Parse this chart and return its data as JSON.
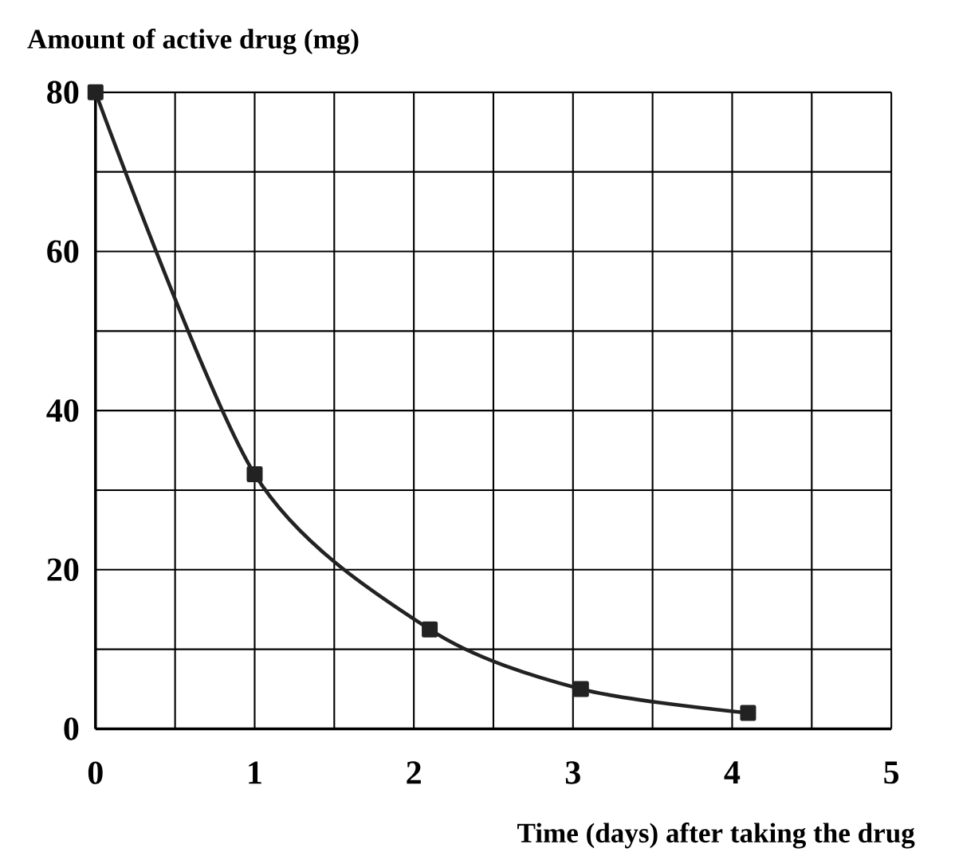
{
  "chart_data": {
    "type": "line",
    "xlabel": "Time (days) after taking the drug",
    "ylabel": "Amount of active drug (mg)",
    "x": [
      0,
      1,
      2.1,
      3.05,
      4.1
    ],
    "values": [
      80,
      32,
      12.5,
      5,
      2
    ],
    "color": "#222222",
    "marker": "square",
    "line_style": "solid",
    "grid": true,
    "xlim": [
      0,
      5
    ],
    "ylim": [
      0,
      80
    ],
    "xticks": [
      0,
      {
        "value": 0.5,
        "label": null
      },
      1,
      {
        "value": 1.5,
        "label": null
      },
      2,
      {
        "value": 2.5,
        "label": null
      },
      3,
      {
        "value": 3.5,
        "label": null
      },
      4,
      {
        "value": 4.5,
        "label": null
      },
      5
    ],
    "yticks": [
      0,
      {
        "value": 10,
        "label": null
      },
      20,
      {
        "value": 30,
        "label": null
      },
      40,
      {
        "value": 50,
        "label": null
      },
      60,
      {
        "value": 70,
        "label": null
      },
      80
    ]
  }
}
